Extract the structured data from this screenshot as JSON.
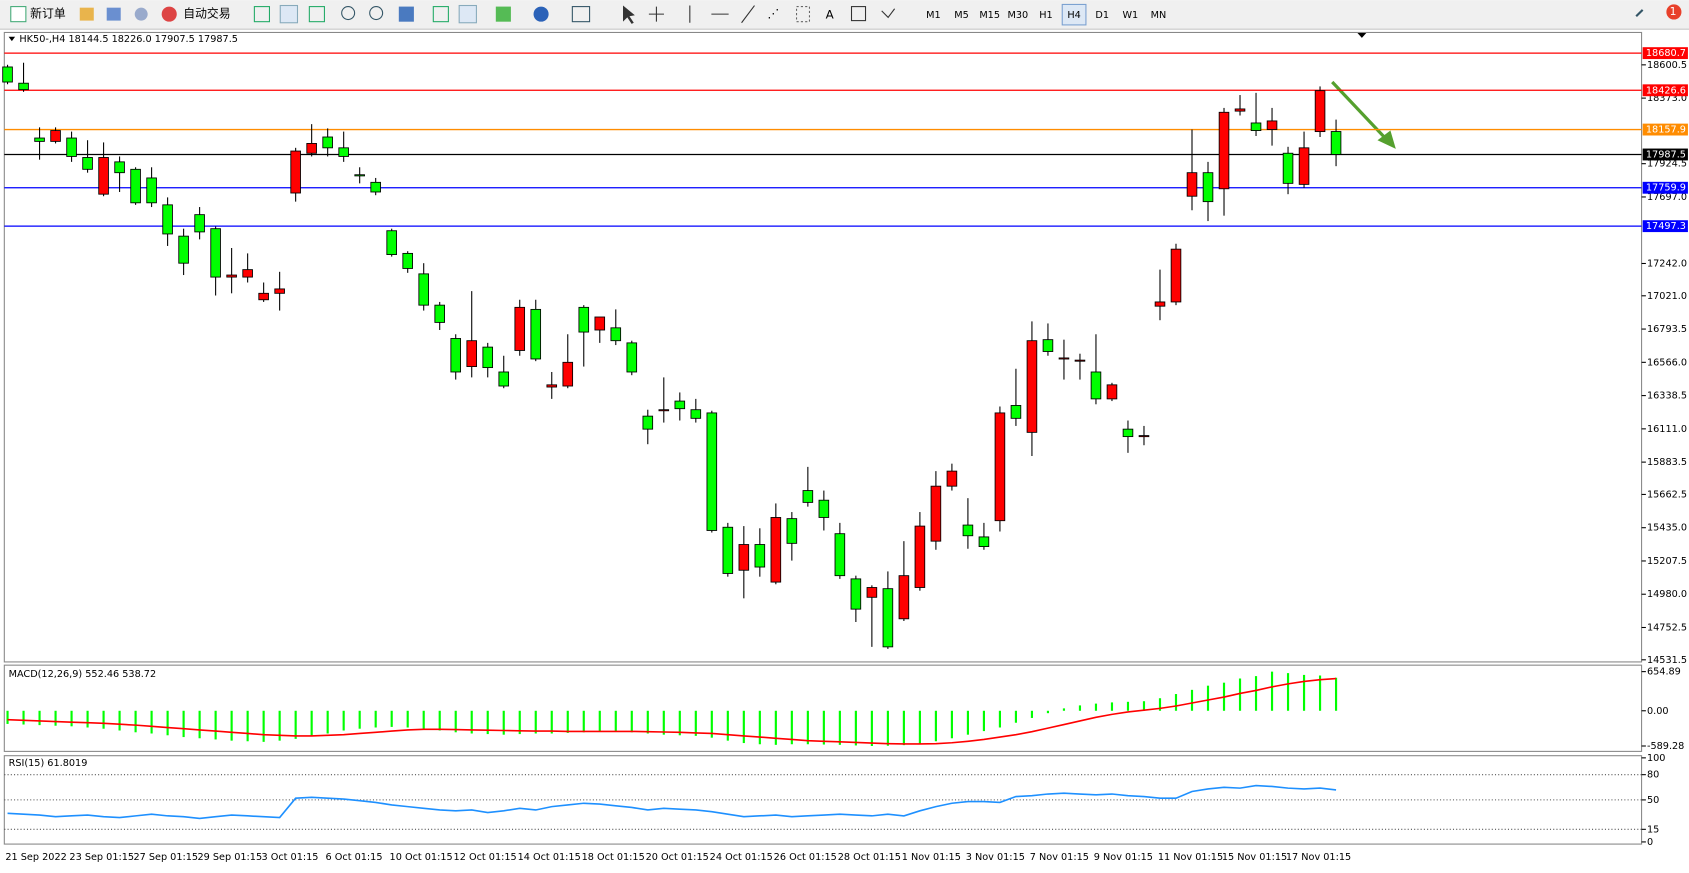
{
  "toolbar": {
    "new_order": "新订单",
    "auto_trading": "自动交易",
    "timeframes": [
      "M1",
      "M5",
      "M15",
      "M30",
      "H1",
      "H4",
      "D1",
      "W1",
      "MN"
    ],
    "active": "H4",
    "notifications": 1
  },
  "chart_data": [
    {
      "type": "candlestick",
      "title": "HK50-,H4 18144.5 18226.0 17907.5 17987.5",
      "categories": [
        "21 Sep 2022",
        null,
        null,
        null,
        "23 Sep 01:15",
        null,
        null,
        null,
        "27 Sep 01:15",
        null,
        null,
        null,
        "29 Sep 01:15",
        null,
        null,
        null,
        "3 Oct 01:15",
        null,
        null,
        null,
        "6 Oct 01:15",
        null,
        null,
        null,
        "10 Oct 01:15",
        null,
        null,
        null,
        "12 Oct 01:15",
        null,
        null,
        null,
        "14 Oct 01:15",
        null,
        null,
        null,
        "18 Oct 01:15",
        null,
        null,
        null,
        "20 Oct 01:15",
        null,
        null,
        null,
        "24 Oct 01:15",
        null,
        null,
        null,
        "26 Oct 01:15",
        null,
        null,
        null,
        "28 Oct 01:15",
        null,
        null,
        null,
        "1 Nov 01:15",
        null,
        null,
        null,
        "3 Nov 01:15",
        null,
        null,
        null,
        "7 Nov 01:15",
        null,
        null,
        null,
        "9 Nov 01:15",
        null,
        null,
        null,
        "11 Nov 01:15",
        null,
        null,
        null,
        "15 Nov 01:15",
        null,
        null,
        null,
        "17 Nov 01:15",
        null,
        null,
        null
      ],
      "open": [
        18586,
        18475,
        18100,
        18077,
        18100,
        17967,
        17716,
        17937,
        17886,
        17827,
        17643,
        17429,
        17576,
        17480,
        17149,
        17149,
        16994,
        17038,
        17724,
        17996,
        18107,
        18033,
        17849,
        17797,
        17466,
        17311,
        17171,
        16957,
        16729,
        16537,
        16670,
        16500,
        16647,
        16928,
        16397,
        16404,
        16942,
        16787,
        16802,
        16699,
        16198,
        16242,
        16301,
        16242,
        16220,
        15438,
        15144,
        15320,
        15063,
        15497,
        15689,
        15623,
        15394,
        15085,
        14959,
        15018,
        14812,
        15026,
        15343,
        15719,
        15453,
        15372,
        15483,
        16271,
        16087,
        16721,
        16589,
        16574,
        16500,
        16316,
        16109,
        16058,
        16950,
        16979,
        17702,
        17863,
        17753,
        18284,
        18203,
        18158,
        17996,
        17783,
        18144,
        18144.5
      ],
      "high": [
        18601,
        18615,
        18173,
        18173,
        18144,
        18085,
        18070,
        17974,
        17900,
        17900,
        17694,
        17480,
        17628,
        17495,
        17348,
        17311,
        17112,
        17185,
        18033,
        18195,
        18166,
        18144,
        17900,
        17827,
        17480,
        17326,
        17244,
        16979,
        16758,
        17053,
        16699,
        16611,
        16994,
        16994,
        16500,
        16758,
        16957,
        16876,
        16928,
        16714,
        16242,
        16463,
        16360,
        16316,
        16235,
        15468,
        15446,
        15431,
        15601,
        15542,
        15851,
        15689,
        15468,
        15107,
        15041,
        15136,
        15343,
        15542,
        15822,
        15873,
        15637,
        15468,
        16264,
        16522,
        16846,
        16832,
        16721,
        16625,
        16758,
        16426,
        16168,
        16131,
        17200,
        17377,
        18158,
        17937,
        18306,
        18394,
        18409,
        18306,
        18040,
        18144,
        18453,
        18226
      ],
      "low": [
        18468,
        18416,
        17952,
        18063,
        17937,
        17863,
        17702,
        17731,
        17643,
        17628,
        17362,
        17163,
        17407,
        17023,
        17038,
        17112,
        16979,
        16920,
        17665,
        17974,
        17974,
        17937,
        17790,
        17709,
        17289,
        17178,
        16920,
        16787,
        16448,
        16463,
        16463,
        16389,
        16611,
        16574,
        16316,
        16389,
        16537,
        16699,
        16684,
        16478,
        16006,
        16154,
        16168,
        16154,
        15402,
        15100,
        14952,
        15100,
        15048,
        15210,
        15579,
        15416,
        15085,
        14790,
        14620,
        14606,
        14797,
        15004,
        15284,
        15689,
        15291,
        15284,
        15409,
        16131,
        15925,
        16611,
        16448,
        16448,
        16279,
        16301,
        15947,
        15999,
        16854,
        16957,
        17606,
        17532,
        17569,
        18254,
        18114,
        18048,
        17716,
        17760,
        18107,
        17907.5
      ],
      "close": [
        18483,
        18431,
        18077,
        18151,
        17974,
        17886,
        17967,
        17863,
        17657,
        17657,
        17444,
        17244,
        17458,
        17149,
        17163,
        17200,
        17038,
        17068,
        18011,
        18063,
        18033,
        17974,
        17841,
        17731,
        17303,
        17208,
        16957,
        16839,
        16500,
        16714,
        16530,
        16404,
        16942,
        16589,
        16412,
        16566,
        16773,
        16876,
        16714,
        16500,
        16109,
        16242,
        16249,
        16183,
        15416,
        15122,
        15320,
        15166,
        15505,
        15328,
        15608,
        15505,
        15107,
        14878,
        15026,
        14620,
        15107,
        15446,
        15719,
        15822,
        15380,
        15306,
        16220,
        16183,
        16714,
        16640,
        16596,
        16581,
        16316,
        16412,
        16058,
        16065,
        16979,
        17340,
        17863,
        17665,
        18276,
        18299,
        18151,
        18217,
        17790,
        18033,
        18424,
        17987.5
      ],
      "up_color": "#ff0000",
      "down_color": "#00ff00",
      "ylim": [
        14517,
        18822
      ],
      "yticks": [
        18600.5,
        {
          "value": 18373,
          "label": "18373.0"
        },
        {
          "value": 17924.5,
          "label": "17924.5"
        },
        {
          "value": 17697,
          "label": "17697.0"
        },
        {
          "value": 17242,
          "label": "17242.0"
        },
        {
          "value": 17021,
          "label": "17021.0"
        },
        16793.5,
        {
          "value": 16566,
          "label": "16566.0"
        },
        16338.5,
        {
          "value": 16111,
          "label": "16111.0"
        },
        15883.5,
        15662.5,
        {
          "value": 15435,
          "label": "15435.0"
        },
        15207.5,
        {
          "value": 14980,
          "label": "14980.0"
        },
        14752.5,
        14531.5
      ],
      "levels": [
        {
          "value": 18680.7,
          "color": "#ff0000"
        },
        {
          "value": 18426.6,
          "color": "#ff0000"
        },
        {
          "value": 18157.9,
          "color": "#ff8c00"
        },
        {
          "value": 17987.5,
          "color": "#000000"
        },
        {
          "value": 17759.9,
          "color": "#0000ff"
        },
        {
          "value": 17497.3,
          "color": "#0000ff"
        }
      ]
    },
    {
      "type": "macd",
      "title": "MACD(12,26,9) 552.46 538.72",
      "histogram": {
        "color": "#00ff00",
        "values": [
          -220,
          -230,
          -240,
          -250,
          -260,
          -280,
          -300,
          -330,
          -360,
          -380,
          -410,
          -440,
          -460,
          -480,
          -500,
          -510,
          -520,
          -500,
          -470,
          -430,
          -380,
          -330,
          -300,
          -280,
          -270,
          -280,
          -300,
          -330,
          -360,
          -380,
          -390,
          -400,
          -390,
          -380,
          -380,
          -370,
          -360,
          -350,
          -350,
          -360,
          -380,
          -400,
          -410,
          -420,
          -450,
          -500,
          -540,
          -560,
          -570,
          -560,
          -560,
          -565,
          -570,
          -580,
          -589.28,
          -585,
          -575,
          -550,
          -510,
          -460,
          -400,
          -340,
          -280,
          -200,
          -120,
          -40,
          40,
          90,
          120,
          140,
          150,
          160,
          210,
          280,
          350,
          420,
          470,
          540,
          580,
          654.89,
          630,
          600,
          590,
          552.46
        ]
      },
      "signal": {
        "color": "#ff0000",
        "values": [
          -150,
          -160,
          -170,
          -180,
          -190,
          -200,
          -210,
          -225,
          -240,
          -260,
          -280,
          -300,
          -320,
          -340,
          -360,
          -380,
          -400,
          -410,
          -420,
          -420,
          -410,
          -400,
          -380,
          -360,
          -340,
          -320,
          -310,
          -310,
          -315,
          -320,
          -325,
          -330,
          -335,
          -340,
          -340,
          -345,
          -345,
          -345,
          -345,
          -345,
          -350,
          -355,
          -360,
          -370,
          -380,
          -400,
          -420,
          -440,
          -460,
          -480,
          -500,
          -510,
          -520,
          -530,
          -540,
          -550,
          -555,
          -555,
          -550,
          -535,
          -510,
          -480,
          -440,
          -400,
          -350,
          -290,
          -230,
          -170,
          -110,
          -60,
          -20,
          10,
          40,
          80,
          130,
          180,
          230,
          290,
          340,
          400,
          450,
          490,
          520,
          538.72
        ]
      },
      "ylim": [
        -589.28,
        654.89
      ],
      "yticks": [
        654.89,
        {
          "value": 0,
          "label": "0.00"
        },
        -589.28
      ]
    },
    {
      "type": "line",
      "title": "RSI(15) 61.8019",
      "color": "#1e90ff",
      "values": [
        34,
        33,
        32,
        30,
        31,
        32,
        30,
        29,
        31,
        33,
        31,
        30,
        28,
        30,
        32,
        31,
        30,
        29,
        52,
        53,
        52,
        51,
        49,
        47,
        44,
        42,
        40,
        38,
        37,
        38,
        35,
        37,
        40,
        38,
        42,
        44,
        46,
        45,
        43,
        41,
        38,
        40,
        39,
        38,
        36,
        33,
        30,
        31,
        32,
        30,
        31,
        32,
        33,
        32,
        31,
        33,
        31,
        37,
        42,
        46,
        48,
        48,
        47,
        54,
        55,
        57,
        58,
        57,
        56,
        57,
        55,
        54,
        52,
        52,
        60,
        63,
        65,
        64,
        67,
        66,
        64,
        63,
        64,
        61.8019
      ],
      "ylim": [
        0,
        100
      ],
      "yticks": [
        100,
        80,
        50,
        15,
        0
      ],
      "levels": [
        80,
        50,
        15
      ]
    }
  ]
}
